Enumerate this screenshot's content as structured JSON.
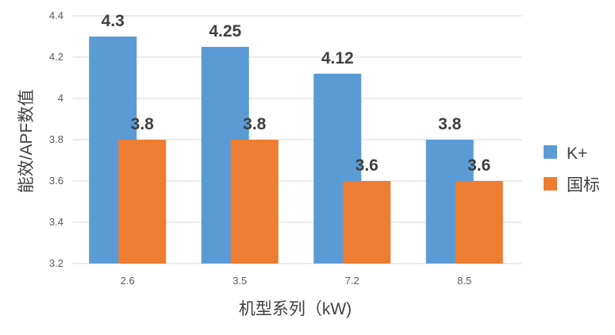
{
  "chart_data": {
    "type": "bar",
    "title": "",
    "xlabel": "机型系列（kW)",
    "ylabel": "能效/APF数值",
    "categories": [
      "2.6",
      "3.5",
      "7.2",
      "8.5"
    ],
    "series": [
      {
        "name": "K+",
        "values": [
          4.3,
          4.25,
          4.12,
          3.8
        ],
        "color": "#5b9bd5"
      },
      {
        "name": "国标",
        "values": [
          3.8,
          3.8,
          3.6,
          3.6
        ],
        "color": "#ed7d31"
      }
    ],
    "ylim": [
      3.2,
      4.4
    ],
    "yticks": [
      "3.2",
      "3.4",
      "3.6",
      "3.8",
      "4",
      "4.2",
      "4.4"
    ],
    "grid": true,
    "legend_position": "right"
  }
}
